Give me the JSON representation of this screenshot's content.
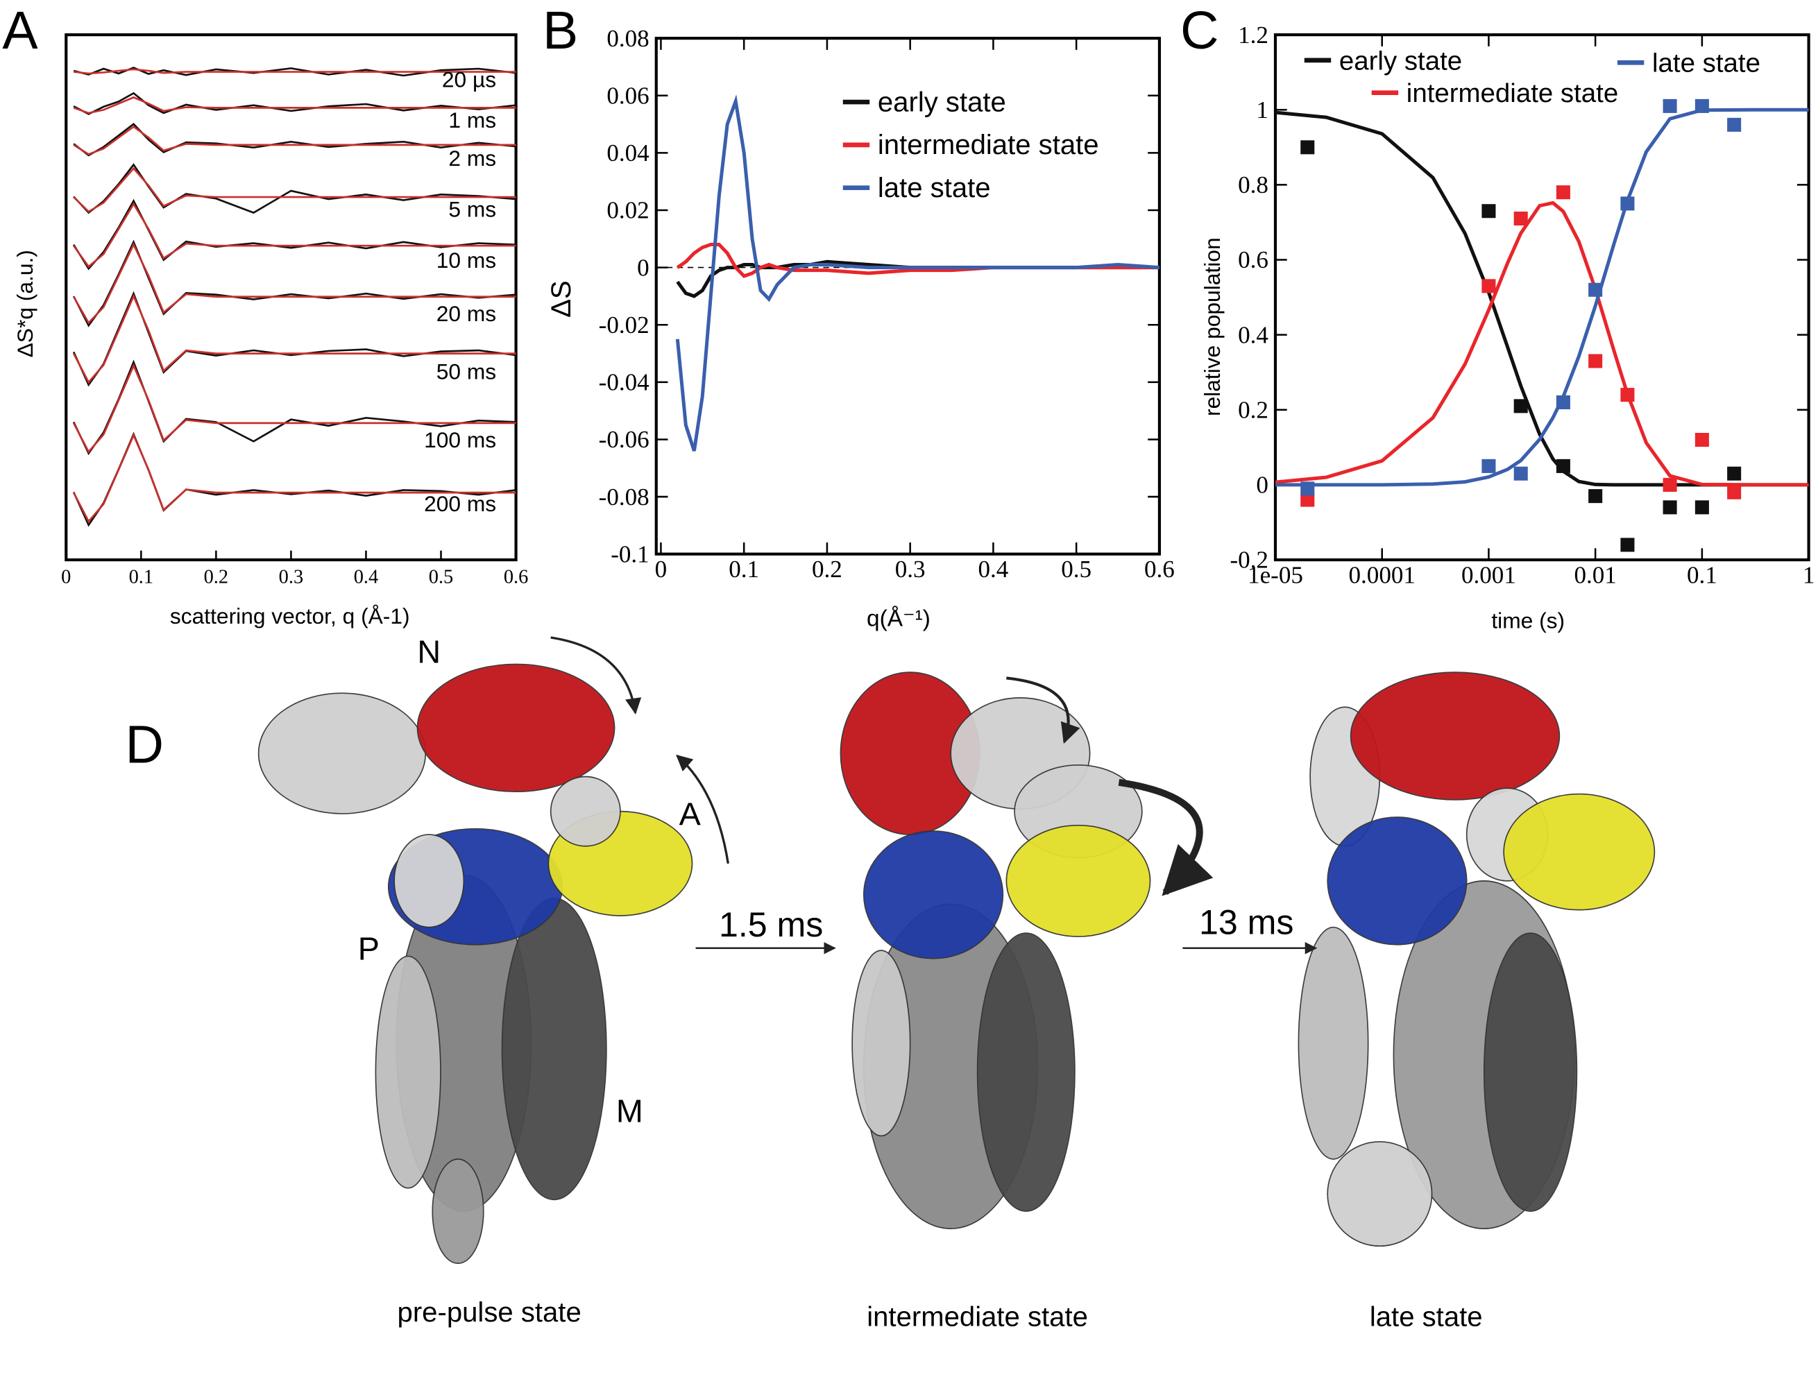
{
  "chart_data": [
    {
      "type": "trace-stack",
      "panel": "A",
      "x_label": "scattering vector, q (Å-1)",
      "y_label": "ΔS*q (a.u.)",
      "xlim": [
        0,
        0.6
      ],
      "xticks": [
        0,
        0.1,
        0.2,
        0.3,
        0.4,
        0.5,
        0.6
      ],
      "data_color": "#111111",
      "fit_color": "#c8302c",
      "x": [
        0.01,
        0.03,
        0.05,
        0.07,
        0.09,
        0.11,
        0.13,
        0.16,
        0.2,
        0.25,
        0.3,
        0.35,
        0.4,
        0.45,
        0.5,
        0.55,
        0.6
      ],
      "traces": [
        {
          "label": "20 µs",
          "data": [
            0.02,
            -0.05,
            0.06,
            -0.03,
            0.08,
            -0.04,
            0.03,
            -0.06,
            0.05,
            -0.02,
            0.07,
            -0.05,
            0.04,
            -0.07,
            0.03,
            0.06,
            -0.02
          ],
          "fit": [
            0,
            -0.03,
            -0.01,
            0.02,
            0.05,
            0.02,
            -0.02,
            0,
            0,
            0,
            0,
            0,
            0,
            0,
            0,
            0,
            0
          ]
        },
        {
          "label": "1 ms",
          "data": [
            0.03,
            -0.12,
            0.02,
            0.12,
            0.28,
            0.05,
            -0.1,
            0.06,
            -0.04,
            0.05,
            -0.06,
            0.03,
            0.07,
            -0.05,
            0.04,
            -0.03,
            0.05
          ],
          "fit": [
            0,
            -0.1,
            -0.04,
            0.08,
            0.2,
            0.08,
            -0.06,
            0.01,
            0,
            0,
            0,
            0,
            0,
            0,
            0,
            0,
            0
          ]
        },
        {
          "label": "2 ms",
          "data": [
            0.02,
            -0.2,
            -0.04,
            0.18,
            0.4,
            0.1,
            -0.14,
            0.05,
            0.03,
            -0.05,
            0.06,
            -0.04,
            0.02,
            0.06,
            -0.05,
            0.04,
            -0.03
          ],
          "fit": [
            0,
            -0.18,
            -0.07,
            0.14,
            0.35,
            0.14,
            -0.11,
            0.02,
            0,
            0,
            0,
            0,
            0,
            0,
            0,
            0,
            0
          ]
        },
        {
          "label": "5 ms",
          "data": [
            0.01,
            -0.3,
            -0.08,
            0.25,
            0.62,
            0.2,
            -0.2,
            0.06,
            -0.03,
            -0.3,
            0.12,
            -0.04,
            0.05,
            -0.06,
            0.05,
            0.02,
            -0.04
          ],
          "fit": [
            0,
            -0.28,
            -0.11,
            0.22,
            0.55,
            0.22,
            -0.17,
            0.03,
            0,
            0,
            0,
            0,
            0,
            0,
            0,
            0,
            0
          ]
        },
        {
          "label": "10 ms",
          "data": [
            0.02,
            -0.44,
            -0.12,
            0.35,
            0.86,
            0.3,
            -0.27,
            0.08,
            -0.02,
            0.05,
            -0.04,
            0.06,
            -0.05,
            0.07,
            -0.03,
            0.05,
            0.02
          ],
          "fit": [
            0,
            -0.4,
            -0.16,
            0.32,
            0.8,
            0.32,
            -0.24,
            0.04,
            0,
            0,
            0,
            0,
            0,
            0,
            0,
            0,
            0
          ]
        },
        {
          "label": "20 ms",
          "data": [
            0.01,
            -0.55,
            -0.16,
            0.43,
            1.05,
            0.36,
            -0.33,
            0.07,
            0.04,
            -0.05,
            0.05,
            -0.03,
            0.06,
            -0.04,
            0.05,
            -0.02,
            0.04
          ],
          "fit": [
            0,
            -0.5,
            -0.2,
            0.4,
            1,
            0.4,
            -0.3,
            0.05,
            0,
            0,
            0,
            0,
            0,
            0,
            0,
            0,
            0
          ]
        },
        {
          "label": "50 ms",
          "data": [
            0.03,
            -0.6,
            -0.2,
            0.48,
            1.15,
            0.4,
            -0.36,
            0.05,
            -0.04,
            0.06,
            -0.03,
            0.05,
            0.08,
            -0.05,
            0.04,
            0.06,
            -0.03
          ],
          "fit": [
            0,
            -0.55,
            -0.22,
            0.44,
            1.1,
            0.44,
            -0.33,
            0.06,
            0,
            0,
            0,
            0,
            0,
            0,
            0,
            0,
            0
          ]
        },
        {
          "label": "100 ms",
          "data": [
            0.02,
            -0.58,
            -0.18,
            0.46,
            1.17,
            0.42,
            -0.35,
            0.08,
            0.02,
            -0.35,
            0.07,
            -0.05,
            0.1,
            0.03,
            -0.06,
            0.05,
            0.02
          ],
          "fit": [
            0,
            -0.55,
            -0.22,
            0.44,
            1.1,
            0.44,
            -0.33,
            0.06,
            0,
            0,
            0,
            0,
            0,
            0,
            0,
            0,
            0
          ]
        },
        {
          "label": "200 ms",
          "data": [
            0.01,
            -0.62,
            -0.2,
            0.45,
            1.12,
            0.43,
            -0.34,
            0.06,
            -0.04,
            0.05,
            -0.03,
            0.04,
            -0.06,
            0.05,
            0.03,
            -0.04,
            0.05
          ],
          "fit": [
            0,
            -0.55,
            -0.22,
            0.44,
            1.1,
            0.44,
            -0.33,
            0.06,
            0,
            0,
            0,
            0,
            0,
            0,
            0,
            0,
            0
          ]
        }
      ]
    },
    {
      "type": "line",
      "panel": "B",
      "x_label": "q(Å⁻¹)",
      "y_label": "ΔS",
      "xlim": [
        0,
        0.6
      ],
      "xticks": [
        0,
        0.1,
        0.2,
        0.3,
        0.4,
        0.5,
        0.6
      ],
      "ylim": [
        -0.1,
        0.08
      ],
      "yticks": [
        -0.1,
        -0.08,
        -0.06,
        -0.04,
        -0.02,
        0,
        0.02,
        0.04,
        0.06,
        0.08
      ],
      "x": [
        0.02,
        0.03,
        0.04,
        0.05,
        0.06,
        0.07,
        0.08,
        0.09,
        0.1,
        0.11,
        0.12,
        0.13,
        0.14,
        0.16,
        0.18,
        0.2,
        0.25,
        0.3,
        0.35,
        0.4,
        0.45,
        0.5,
        0.55,
        0.6
      ],
      "series": [
        {
          "name": "early state",
          "color": "#111111",
          "values": [
            -0.005,
            -0.009,
            -0.01,
            -0.008,
            -0.003,
            -0.001,
            0,
            0,
            0.001,
            0.001,
            0,
            0,
            0,
            0.001,
            0.001,
            0.002,
            0.001,
            0,
            0,
            0,
            0,
            0,
            0,
            0
          ]
        },
        {
          "name": "intermediate state",
          "color": "#e8262b",
          "values": [
            0,
            0.002,
            0.005,
            0.007,
            0.008,
            0.008,
            0.005,
            0,
            -0.003,
            -0.002,
            0,
            0.001,
            0,
            -0.001,
            -0.001,
            -0.001,
            -0.002,
            -0.001,
            -0.001,
            0,
            0,
            0,
            0,
            0
          ]
        },
        {
          "name": "late state",
          "color": "#3a5fad",
          "values": [
            -0.025,
            -0.055,
            -0.064,
            -0.045,
            -0.01,
            0.025,
            0.05,
            0.058,
            0.04,
            0.01,
            -0.008,
            -0.011,
            -0.006,
            0,
            0.001,
            0.001,
            0,
            0,
            0,
            0,
            0,
            0,
            0.001,
            0
          ]
        }
      ]
    },
    {
      "type": "scatter-fit",
      "panel": "C",
      "x_label": "time (s)",
      "y_label": "relative population",
      "log_x": true,
      "xlim": [
        1e-05,
        1
      ],
      "xticks": [
        {
          "value": 1e-05,
          "label": "1e-05"
        },
        0.0001,
        0.001,
        0.01,
        0.1,
        1
      ],
      "ylim": [
        -0.2,
        1.2
      ],
      "yticks": [
        -0.2,
        0,
        0.2,
        0.4,
        0.6,
        0.8,
        1,
        1.2
      ],
      "x": [
        2e-05,
        0.001,
        0.002,
        0.005,
        0.01,
        0.02,
        0.05,
        0.1,
        0.2
      ],
      "fit_x": [
        1e-05,
        3e-05,
        0.0001,
        0.0003,
        0.0006,
        0.001,
        0.0015,
        0.002,
        0.003,
        0.004,
        0.005,
        0.007,
        0.01,
        0.015,
        0.02,
        0.03,
        0.05,
        0.1,
        0.3,
        1
      ],
      "series": [
        {
          "name": "early state",
          "color": "#111111",
          "values": [
            0.9,
            0.73,
            0.21,
            0.05,
            -0.03,
            -0.16,
            -0.06,
            -0.06,
            0.03
          ],
          "fit": [
            0.993,
            0.98,
            0.936,
            0.819,
            0.67,
            0.513,
            0.368,
            0.264,
            0.135,
            0.069,
            0.036,
            0.009,
            0.001,
            0,
            0,
            0,
            0,
            0,
            0,
            0
          ]
        },
        {
          "name": "intermediate state",
          "color": "#e8262b",
          "values": [
            -0.04,
            0.53,
            0.71,
            0.78,
            0.33,
            0.24,
            0,
            0.12,
            -0.02
          ],
          "fit": [
            0.007,
            0.02,
            0.064,
            0.179,
            0.322,
            0.466,
            0.591,
            0.671,
            0.744,
            0.752,
            0.729,
            0.649,
            0.522,
            0.356,
            0.242,
            0.112,
            0.024,
            0.001,
            0,
            0
          ]
        },
        {
          "name": "late state",
          "color": "#3a5fad",
          "values": [
            -0.01,
            0.05,
            0.03,
            0.22,
            0.52,
            0.75,
            1.01,
            1.01,
            0.96
          ],
          "fit": [
            0,
            0,
            0,
            0.002,
            0.008,
            0.021,
            0.041,
            0.065,
            0.121,
            0.179,
            0.235,
            0.342,
            0.477,
            0.644,
            0.758,
            0.888,
            0.976,
            0.999,
            1,
            1
          ]
        }
      ]
    }
  ],
  "panel_d": {
    "panel": "D",
    "domain_labels": [
      "N",
      "A",
      "P",
      "M"
    ],
    "transitions": [
      "1.5 ms",
      "13 ms"
    ],
    "captions": [
      "pre-pulse state",
      "intermediate state",
      "late state"
    ]
  }
}
